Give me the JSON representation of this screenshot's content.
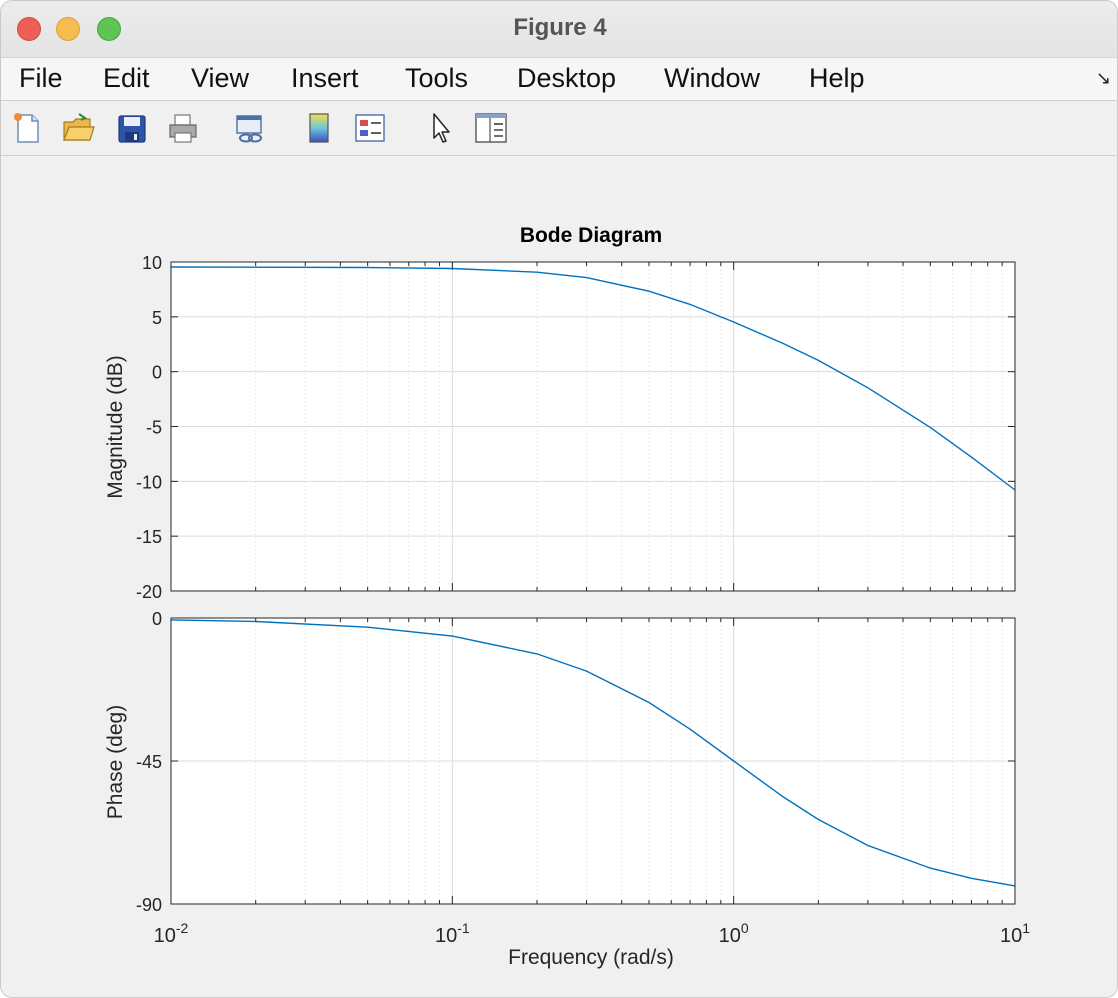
{
  "window": {
    "title": "Figure 4"
  },
  "menu": [
    "File",
    "Edit",
    "View",
    "Insert",
    "Tools",
    "Desktop",
    "Window",
    "Help"
  ],
  "toolbar": [
    {
      "name": "new-figure-icon"
    },
    {
      "name": "open-file-icon"
    },
    {
      "name": "save-icon"
    },
    {
      "name": "print-icon"
    },
    {
      "name": "link-plot-icon"
    },
    {
      "name": "colorbar-icon"
    },
    {
      "name": "legend-icon"
    },
    {
      "name": "edit-plot-pointer-icon"
    },
    {
      "name": "property-inspector-icon"
    }
  ],
  "chart_data": {
    "type": "line",
    "title": "Bode Diagram",
    "xlabel": "Frequency  (rad/s)",
    "xscale": "log",
    "xlim": [
      0.01,
      10
    ],
    "x_tick_labels": [
      {
        "base": "10",
        "exp": "-2"
      },
      {
        "base": "10",
        "exp": "-1"
      },
      {
        "base": "10",
        "exp": "0"
      },
      {
        "base": "10",
        "exp": "1"
      }
    ],
    "grid": true,
    "color": "#0072BD",
    "magnitude": {
      "ylabel": "Magnitude (dB)",
      "ylim": [
        -20,
        10
      ],
      "yticks": [
        10,
        5,
        0,
        -5,
        -10,
        -15,
        -20
      ],
      "series": [
        {
          "x": [
            0.01,
            0.02,
            0.05,
            0.1,
            0.2,
            0.3,
            0.5,
            0.7,
            1,
            1.5,
            2,
            3,
            5,
            7,
            10
          ],
          "y": [
            9.54,
            9.53,
            9.5,
            9.41,
            9.07,
            8.58,
            7.34,
            6.13,
            4.53,
            2.57,
            1.03,
            -1.47,
            -5.08,
            -7.79,
            -10.79
          ]
        }
      ]
    },
    "phase": {
      "ylabel": "Phase (deg)",
      "ylim": [
        -90,
        0
      ],
      "yticks": [
        0,
        -45,
        -90
      ],
      "series": [
        {
          "x": [
            0.01,
            0.02,
            0.05,
            0.1,
            0.2,
            0.3,
            0.5,
            0.7,
            1,
            1.5,
            2,
            3,
            5,
            7,
            10
          ],
          "y": [
            -0.6,
            -1.1,
            -2.9,
            -5.7,
            -11.3,
            -16.7,
            -26.6,
            -35.0,
            -45.0,
            -56.3,
            -63.4,
            -71.6,
            -78.7,
            -81.9,
            -84.3
          ]
        }
      ]
    }
  }
}
